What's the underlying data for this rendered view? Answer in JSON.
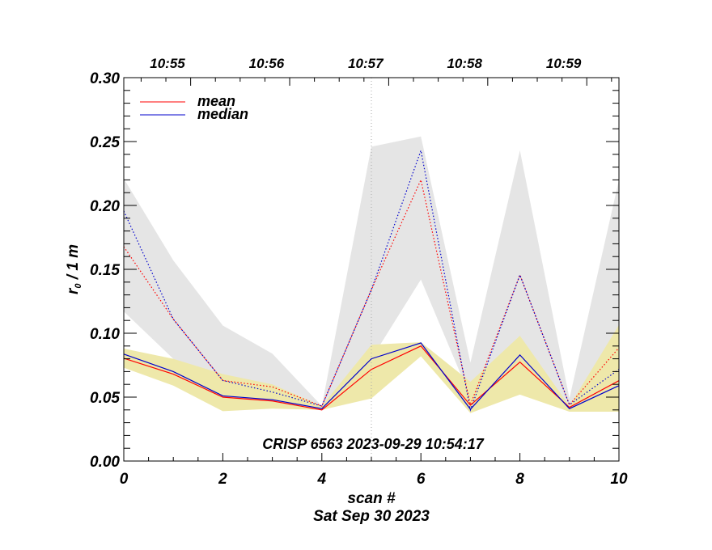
{
  "chart_data": {
    "type": "line",
    "title": "",
    "annotation": "CRISP 6563 2023-09-29 10:54:17",
    "xlabel": "scan #",
    "xlabel2": "Sat Sep 30 2023",
    "ylabel_main": "r",
    "ylabel_sub": "0",
    "ylabel_rest": " / 1 m",
    "xlim": [
      0,
      10
    ],
    "ylim": [
      0.0,
      0.3
    ],
    "x_ticks": [
      0,
      2,
      4,
      6,
      8,
      10
    ],
    "x_tick_labels": [
      "0",
      "2",
      "4",
      "6",
      "8",
      "10"
    ],
    "x_minor_step": 0.5,
    "y_ticks": [
      0.0,
      0.05,
      0.1,
      0.15,
      0.2,
      0.25,
      0.3
    ],
    "y_tick_labels": [
      "0.00",
      "0.05",
      "0.10",
      "0.15",
      "0.20",
      "0.25",
      "0.30"
    ],
    "y_minor_step": 0.01,
    "top_axis": {
      "labels": [
        "10:55",
        "10:56",
        "10:57",
        "10:58",
        "10:59"
      ],
      "label_scan_positions": [
        0.85,
        2.85,
        4.85,
        6.85,
        8.85
      ],
      "major_scan_positions": [
        1.35,
        3.35,
        5.35,
        7.35,
        9.35
      ],
      "minor_step_scans": 0.5
    },
    "vertical_marker_scan": 5,
    "x": [
      0,
      1,
      2,
      3,
      4,
      5,
      6,
      7,
      8,
      9,
      10
    ],
    "bands": [
      {
        "name": "grey-range",
        "color": "#e5e5e5",
        "upper": [
          0.221,
          0.157,
          0.106,
          0.084,
          0.043,
          0.246,
          0.254,
          0.077,
          0.243,
          0.049,
          0.22
        ],
        "lower": [
          0.117,
          0.08,
          0.062,
          0.05,
          0.043,
          0.08,
          0.142,
          0.05,
          0.09,
          0.043,
          0.06
        ]
      },
      {
        "name": "yellow-range",
        "color": "#eee8aa",
        "upper": [
          0.088,
          0.08,
          0.068,
          0.06,
          0.043,
          0.091,
          0.093,
          0.062,
          0.098,
          0.043,
          0.1065
        ],
        "lower": [
          0.073,
          0.059,
          0.039,
          0.041,
          0.04,
          0.049,
          0.082,
          0.0375,
          0.052,
          0.0386,
          0.0386
        ]
      }
    ],
    "series": [
      {
        "name": "mean",
        "color": "#ff0000",
        "style": "solid",
        "values": [
          0.0804,
          0.068,
          0.05,
          0.047,
          0.04,
          0.0717,
          0.09,
          0.0437,
          0.0774,
          0.042,
          0.0629
        ]
      },
      {
        "name": "median",
        "color": "#0000cc",
        "style": "solid",
        "values": [
          0.0837,
          0.07,
          0.051,
          0.048,
          0.041,
          0.08,
          0.0924,
          0.0405,
          0.083,
          0.041,
          0.059
        ]
      },
      {
        "name": "mean-dotted",
        "color": "#ff0000",
        "style": "dotted",
        "values": [
          0.1677,
          0.111,
          0.063,
          0.058,
          0.043,
          0.134,
          0.22,
          0.044,
          0.1456,
          0.044,
          0.0886
        ]
      },
      {
        "name": "median-dotted",
        "color": "#0000cc",
        "style": "dotted",
        "values": [
          0.1956,
          0.111,
          0.063,
          0.054,
          0.043,
          0.134,
          0.243,
          0.04,
          0.1456,
          0.044,
          0.0717
        ]
      }
    ],
    "legend": [
      {
        "label": "mean",
        "color": "#ff0000"
      },
      {
        "label": "median",
        "color": "#0000cc"
      }
    ],
    "legend_position": "top-left",
    "grid": false
  }
}
